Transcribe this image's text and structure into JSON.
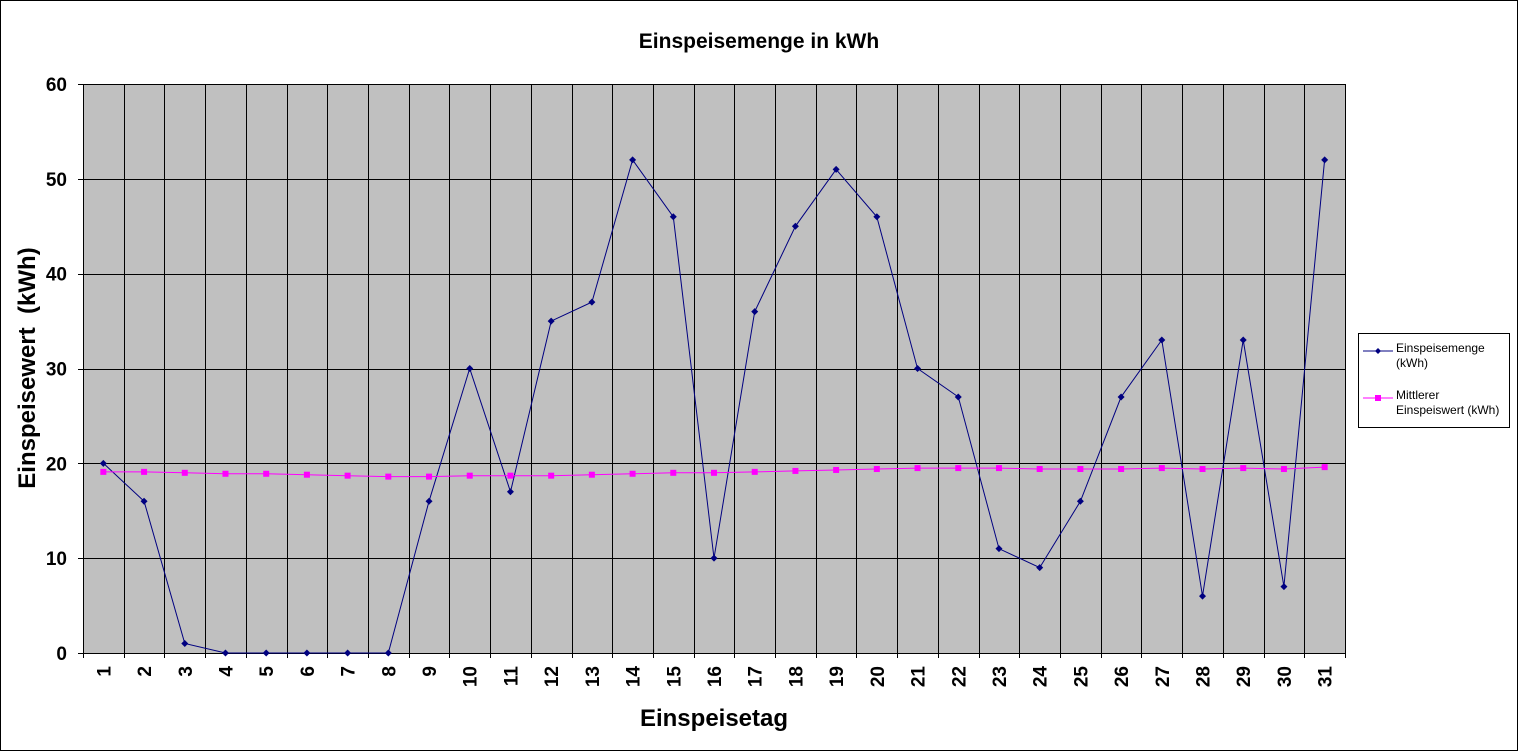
{
  "chart_data": {
    "type": "line",
    "title": "Einspeisemenge in kWh",
    "xlabel": "Einspeisetag",
    "ylabel": "Einspeisewert  (kWh)",
    "categories": [
      "1",
      "2",
      "3",
      "4",
      "5",
      "6",
      "7",
      "8",
      "9",
      "10",
      "11",
      "12",
      "13",
      "14",
      "15",
      "16",
      "17",
      "18",
      "19",
      "20",
      "21",
      "22",
      "23",
      "24",
      "25",
      "26",
      "27",
      "28",
      "29",
      "30",
      "31"
    ],
    "ylim": [
      0,
      60
    ],
    "yticks": [
      0,
      10,
      20,
      30,
      40,
      50,
      60
    ],
    "grid": true,
    "legend_position": "right",
    "series": [
      {
        "name": "Einspeisemenge (kWh)",
        "legend_lines": [
          "Einspeisemenge",
          "(kWh)"
        ],
        "color": "#000080",
        "marker": "diamond",
        "values": [
          20,
          16,
          1,
          0,
          0,
          0,
          0,
          0,
          16,
          30,
          17,
          35,
          37,
          52,
          46,
          10,
          36,
          45,
          51,
          46,
          30,
          27,
          11,
          9,
          16,
          27,
          33,
          6,
          33,
          7,
          52
        ]
      },
      {
        "name": "Mittlerer Einspeiswert (kWh)",
        "legend_lines": [
          "Mittlerer",
          "Einspeiswert (kWh)"
        ],
        "color": "#ff00ff",
        "marker": "square",
        "values": [
          19.1,
          19.1,
          19.0,
          18.9,
          18.9,
          18.8,
          18.7,
          18.6,
          18.6,
          18.7,
          18.7,
          18.7,
          18.8,
          18.9,
          19.0,
          19.0,
          19.1,
          19.2,
          19.3,
          19.4,
          19.5,
          19.5,
          19.5,
          19.4,
          19.4,
          19.4,
          19.5,
          19.4,
          19.5,
          19.4,
          19.6
        ]
      }
    ],
    "colors": {
      "plot_background": "#c0c0c0",
      "gridline": "#000000"
    }
  }
}
